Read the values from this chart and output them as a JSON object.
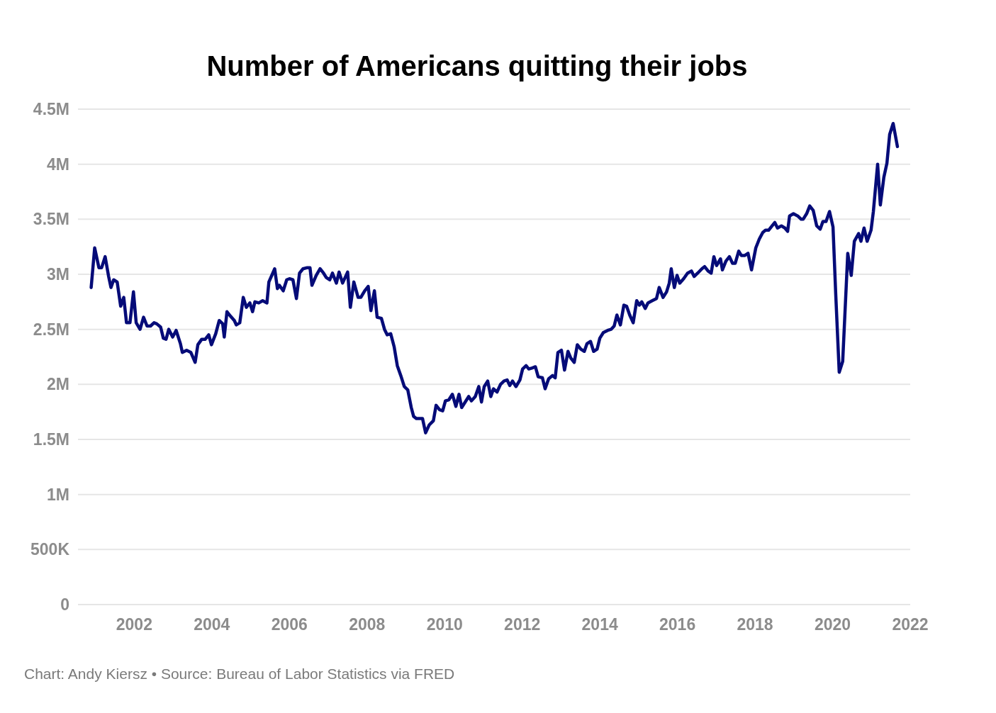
{
  "chart_data": {
    "type": "line",
    "title": "Number of Americans quitting their jobs",
    "annotations": [
      "Chart: Andy Kiersz • Source: Bureau of Labor Statistics via FRED"
    ],
    "xlim": [
      2000.55,
      2022
    ],
    "xticks": [
      2002,
      2004,
      2006,
      2008,
      2010,
      2012,
      2014,
      2016,
      2018,
      2020,
      2022
    ],
    "ylim": [
      0,
      4500000
    ],
    "yticks": [
      {
        "value": 0,
        "label": "0"
      },
      {
        "value": 500000,
        "label": "500K"
      },
      {
        "value": 1000000,
        "label": "1M"
      },
      {
        "value": 1500000,
        "label": "1.5M"
      },
      {
        "value": 2000000,
        "label": "2M"
      },
      {
        "value": 2500000,
        "label": "2.5M"
      },
      {
        "value": 3000000,
        "label": "3M"
      },
      {
        "value": 3500000,
        "label": "3.5M"
      },
      {
        "value": 4000000,
        "label": "4M"
      },
      {
        "value": 4500000,
        "label": "4.5M"
      }
    ],
    "grid": "y",
    "marker": "none",
    "line_style": "solid",
    "series": [
      {
        "color": "#050b78",
        "x": [
          2000.89,
          2000.98,
          2001.09,
          2001.16,
          2001.25,
          2001.34,
          2001.4,
          2001.47,
          2001.56,
          2001.65,
          2001.73,
          2001.8,
          2001.89,
          2001.98,
          2002.05,
          2002.15,
          2002.24,
          2002.33,
          2002.42,
          2002.51,
          2002.58,
          2002.68,
          2002.75,
          2002.82,
          2002.89,
          2002.99,
          2003.08,
          2003.19,
          2003.24,
          2003.35,
          2003.46,
          2003.57,
          2003.64,
          2003.74,
          2003.83,
          2003.92,
          2003.99,
          2004.1,
          2004.19,
          2004.28,
          2004.32,
          2004.39,
          2004.48,
          2004.58,
          2004.63,
          2004.72,
          2004.81,
          2004.89,
          2004.98,
          2005.05,
          2005.11,
          2005.21,
          2005.31,
          2005.42,
          2005.47,
          2005.62,
          2005.69,
          2005.74,
          2005.84,
          2005.93,
          2006.0,
          2006.09,
          2006.18,
          2006.26,
          2006.35,
          2006.46,
          2006.53,
          2006.58,
          2006.69,
          2006.79,
          2006.88,
          2006.95,
          2007.04,
          2007.11,
          2007.21,
          2007.28,
          2007.37,
          2007.5,
          2007.57,
          2007.66,
          2007.77,
          2007.84,
          2007.94,
          2008.03,
          2008.1,
          2008.19,
          2008.26,
          2008.37,
          2008.45,
          2008.52,
          2008.61,
          2008.7,
          2008.78,
          2008.87,
          2008.96,
          2009.05,
          2009.14,
          2009.2,
          2009.27,
          2009.36,
          2009.43,
          2009.51,
          2009.6,
          2009.71,
          2009.78,
          2009.87,
          2009.95,
          2010.02,
          2010.11,
          2010.2,
          2010.29,
          2010.37,
          2010.44,
          2010.53,
          2010.62,
          2010.69,
          2010.79,
          2010.88,
          2010.95,
          2011.02,
          2011.11,
          2011.19,
          2011.26,
          2011.35,
          2011.44,
          2011.53,
          2011.61,
          2011.68,
          2011.75,
          2011.84,
          2011.94,
          2012.01,
          2012.1,
          2012.17,
          2012.26,
          2012.34,
          2012.41,
          2012.52,
          2012.59,
          2012.68,
          2012.78,
          2012.85,
          2012.92,
          2013.01,
          2013.09,
          2013.18,
          2013.25,
          2013.34,
          2013.42,
          2013.51,
          2013.6,
          2013.67,
          2013.76,
          2013.84,
          2013.93,
          2014.0,
          2014.09,
          2014.2,
          2014.29,
          2014.37,
          2014.44,
          2014.53,
          2014.62,
          2014.69,
          2014.77,
          2014.86,
          2014.95,
          2015.02,
          2015.08,
          2015.17,
          2015.24,
          2015.35,
          2015.46,
          2015.53,
          2015.63,
          2015.72,
          2015.79,
          2015.84,
          2015.92,
          2015.99,
          2016.06,
          2016.16,
          2016.26,
          2016.36,
          2016.43,
          2016.52,
          2016.63,
          2016.7,
          2016.79,
          2016.87,
          2016.94,
          2017.01,
          2017.11,
          2017.16,
          2017.25,
          2017.34,
          2017.42,
          2017.49,
          2017.58,
          2017.65,
          2017.73,
          2017.82,
          2017.91,
          2018.02,
          2018.11,
          2018.2,
          2018.27,
          2018.35,
          2018.44,
          2018.51,
          2018.58,
          2018.68,
          2018.77,
          2018.84,
          2018.89,
          2018.99,
          2019.1,
          2019.19,
          2019.24,
          2019.33,
          2019.41,
          2019.5,
          2019.59,
          2019.68,
          2019.75,
          2019.83,
          2019.92,
          2020.01,
          2020.08,
          2020.17,
          2020.26,
          2020.39,
          2020.48,
          2020.56,
          2020.67,
          2020.73,
          2020.81,
          2020.89,
          2020.99,
          2021.05,
          2021.16,
          2021.23,
          2021.32,
          2021.4,
          2021.47,
          2021.56,
          2021.67
        ],
        "values": [
          2880000,
          3240000,
          3060000,
          3060000,
          3160000,
          2980000,
          2880000,
          2950000,
          2930000,
          2710000,
          2790000,
          2560000,
          2560000,
          2840000,
          2560000,
          2500000,
          2610000,
          2530000,
          2530000,
          2560000,
          2550000,
          2520000,
          2420000,
          2410000,
          2500000,
          2430000,
          2490000,
          2370000,
          2290000,
          2310000,
          2290000,
          2200000,
          2360000,
          2410000,
          2410000,
          2450000,
          2360000,
          2460000,
          2580000,
          2550000,
          2430000,
          2660000,
          2620000,
          2580000,
          2540000,
          2560000,
          2790000,
          2700000,
          2740000,
          2660000,
          2750000,
          2740000,
          2760000,
          2740000,
          2930000,
          3050000,
          2870000,
          2900000,
          2850000,
          2950000,
          2960000,
          2950000,
          2780000,
          3010000,
          3050000,
          3060000,
          3060000,
          2900000,
          2990000,
          3050000,
          3010000,
          2970000,
          2950000,
          3010000,
          2920000,
          3020000,
          2920000,
          3020000,
          2700000,
          2930000,
          2790000,
          2790000,
          2850000,
          2890000,
          2670000,
          2850000,
          2610000,
          2600000,
          2500000,
          2450000,
          2460000,
          2340000,
          2170000,
          2080000,
          1980000,
          1950000,
          1790000,
          1710000,
          1690000,
          1690000,
          1690000,
          1560000,
          1630000,
          1670000,
          1810000,
          1770000,
          1760000,
          1850000,
          1860000,
          1910000,
          1800000,
          1910000,
          1790000,
          1840000,
          1890000,
          1850000,
          1890000,
          1980000,
          1840000,
          1980000,
          2030000,
          1890000,
          1960000,
          1930000,
          2000000,
          2030000,
          2040000,
          1990000,
          2030000,
          1980000,
          2040000,
          2140000,
          2170000,
          2140000,
          2150000,
          2160000,
          2070000,
          2060000,
          1960000,
          2050000,
          2080000,
          2060000,
          2290000,
          2310000,
          2130000,
          2300000,
          2240000,
          2200000,
          2360000,
          2320000,
          2300000,
          2370000,
          2390000,
          2300000,
          2320000,
          2420000,
          2470000,
          2490000,
          2500000,
          2530000,
          2630000,
          2540000,
          2720000,
          2710000,
          2630000,
          2560000,
          2760000,
          2720000,
          2750000,
          2690000,
          2740000,
          2760000,
          2780000,
          2880000,
          2790000,
          2840000,
          2920000,
          3050000,
          2880000,
          2990000,
          2920000,
          2960000,
          3010000,
          3030000,
          2980000,
          3010000,
          3050000,
          3070000,
          3030000,
          3010000,
          3160000,
          3080000,
          3140000,
          3040000,
          3120000,
          3160000,
          3100000,
          3100000,
          3210000,
          3170000,
          3170000,
          3190000,
          3040000,
          3240000,
          3320000,
          3380000,
          3400000,
          3400000,
          3440000,
          3470000,
          3420000,
          3440000,
          3420000,
          3390000,
          3530000,
          3550000,
          3530000,
          3500000,
          3500000,
          3550000,
          3620000,
          3580000,
          3440000,
          3410000,
          3480000,
          3480000,
          3570000,
          3430000,
          2820000,
          2110000,
          2210000,
          3190000,
          2990000,
          3300000,
          3370000,
          3300000,
          3420000,
          3300000,
          3400000,
          3570000,
          4000000,
          3630000,
          3880000,
          4010000,
          4270000,
          4370000,
          4160000
        ]
      }
    ]
  }
}
